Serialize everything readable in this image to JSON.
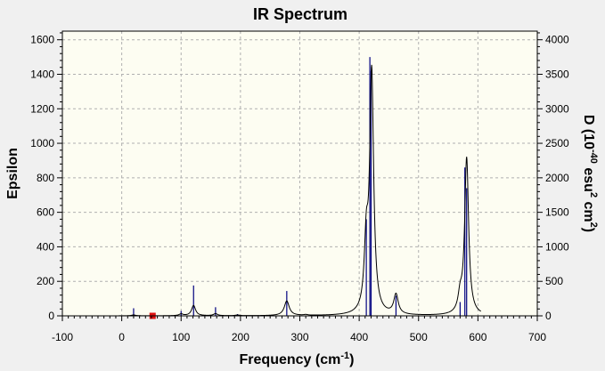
{
  "chart_data": {
    "type": "line",
    "title": "IR Spectrum",
    "xlabel": "Frequency (cm",
    "xlabel_sup": "-1",
    "xlabel_end": ")",
    "ylabel_left": "Epsilon",
    "ylabel_right_parts": [
      "D (10",
      "-40",
      " esu",
      "2",
      " cm",
      "2",
      ")"
    ],
    "xlim": [
      -100,
      700
    ],
    "xticks": [
      -100,
      0,
      100,
      200,
      300,
      400,
      500,
      600,
      700
    ],
    "ylim_left": [
      0,
      1650
    ],
    "yticks_left": [
      0,
      200,
      400,
      600,
      800,
      1000,
      1200,
      1400,
      1600
    ],
    "ylim_right": [
      0,
      4125
    ],
    "yticks_right": [
      0,
      500,
      1000,
      1500,
      2000,
      2500,
      3000,
      3500,
      4000
    ],
    "grid": true,
    "spectrum_peaks": [
      {
        "freq": 20,
        "eps": 5,
        "width": 8
      },
      {
        "freq": 100,
        "eps": 10,
        "width": 8
      },
      {
        "freq": 121,
        "eps": 60,
        "width": 8
      },
      {
        "freq": 158,
        "eps": 12,
        "width": 8
      },
      {
        "freq": 195,
        "eps": 4,
        "width": 8
      },
      {
        "freq": 278,
        "eps": 85,
        "width": 10
      },
      {
        "freq": 310,
        "eps": 4,
        "width": 8
      },
      {
        "freq": 412,
        "eps": 380,
        "width": 8
      },
      {
        "freq": 421,
        "eps": 1390,
        "width": 8
      },
      {
        "freq": 462,
        "eps": 115,
        "width": 9
      },
      {
        "freq": 570,
        "eps": 90,
        "width": 8
      },
      {
        "freq": 581,
        "eps": 910,
        "width": 8
      }
    ],
    "spectrum_range": [
      -5,
      605
    ],
    "sticks": [
      {
        "freq": 20,
        "d": 110
      },
      {
        "freq": 100,
        "d": 70
      },
      {
        "freq": 121,
        "d": 440
      },
      {
        "freq": 158,
        "d": 125
      },
      {
        "freq": 195,
        "d": 25
      },
      {
        "freq": 278,
        "d": 360
      },
      {
        "freq": 412,
        "d": 1400
      },
      {
        "freq": 418,
        "d": 3750
      },
      {
        "freq": 420,
        "d": 3550
      },
      {
        "freq": 462,
        "d": 290
      },
      {
        "freq": 570,
        "d": 200
      },
      {
        "freq": 578,
        "d": 2150
      },
      {
        "freq": 581,
        "d": 1850
      }
    ],
    "marker": {
      "freq": 52,
      "eps": 0
    },
    "colors": {
      "spectrum": "#000000",
      "sticks": "#00007f",
      "marker": "#e01010",
      "plot_bg": "#fdfdf2",
      "window_bg": "#f0f0f0",
      "grid": "#b0b0b0"
    }
  }
}
